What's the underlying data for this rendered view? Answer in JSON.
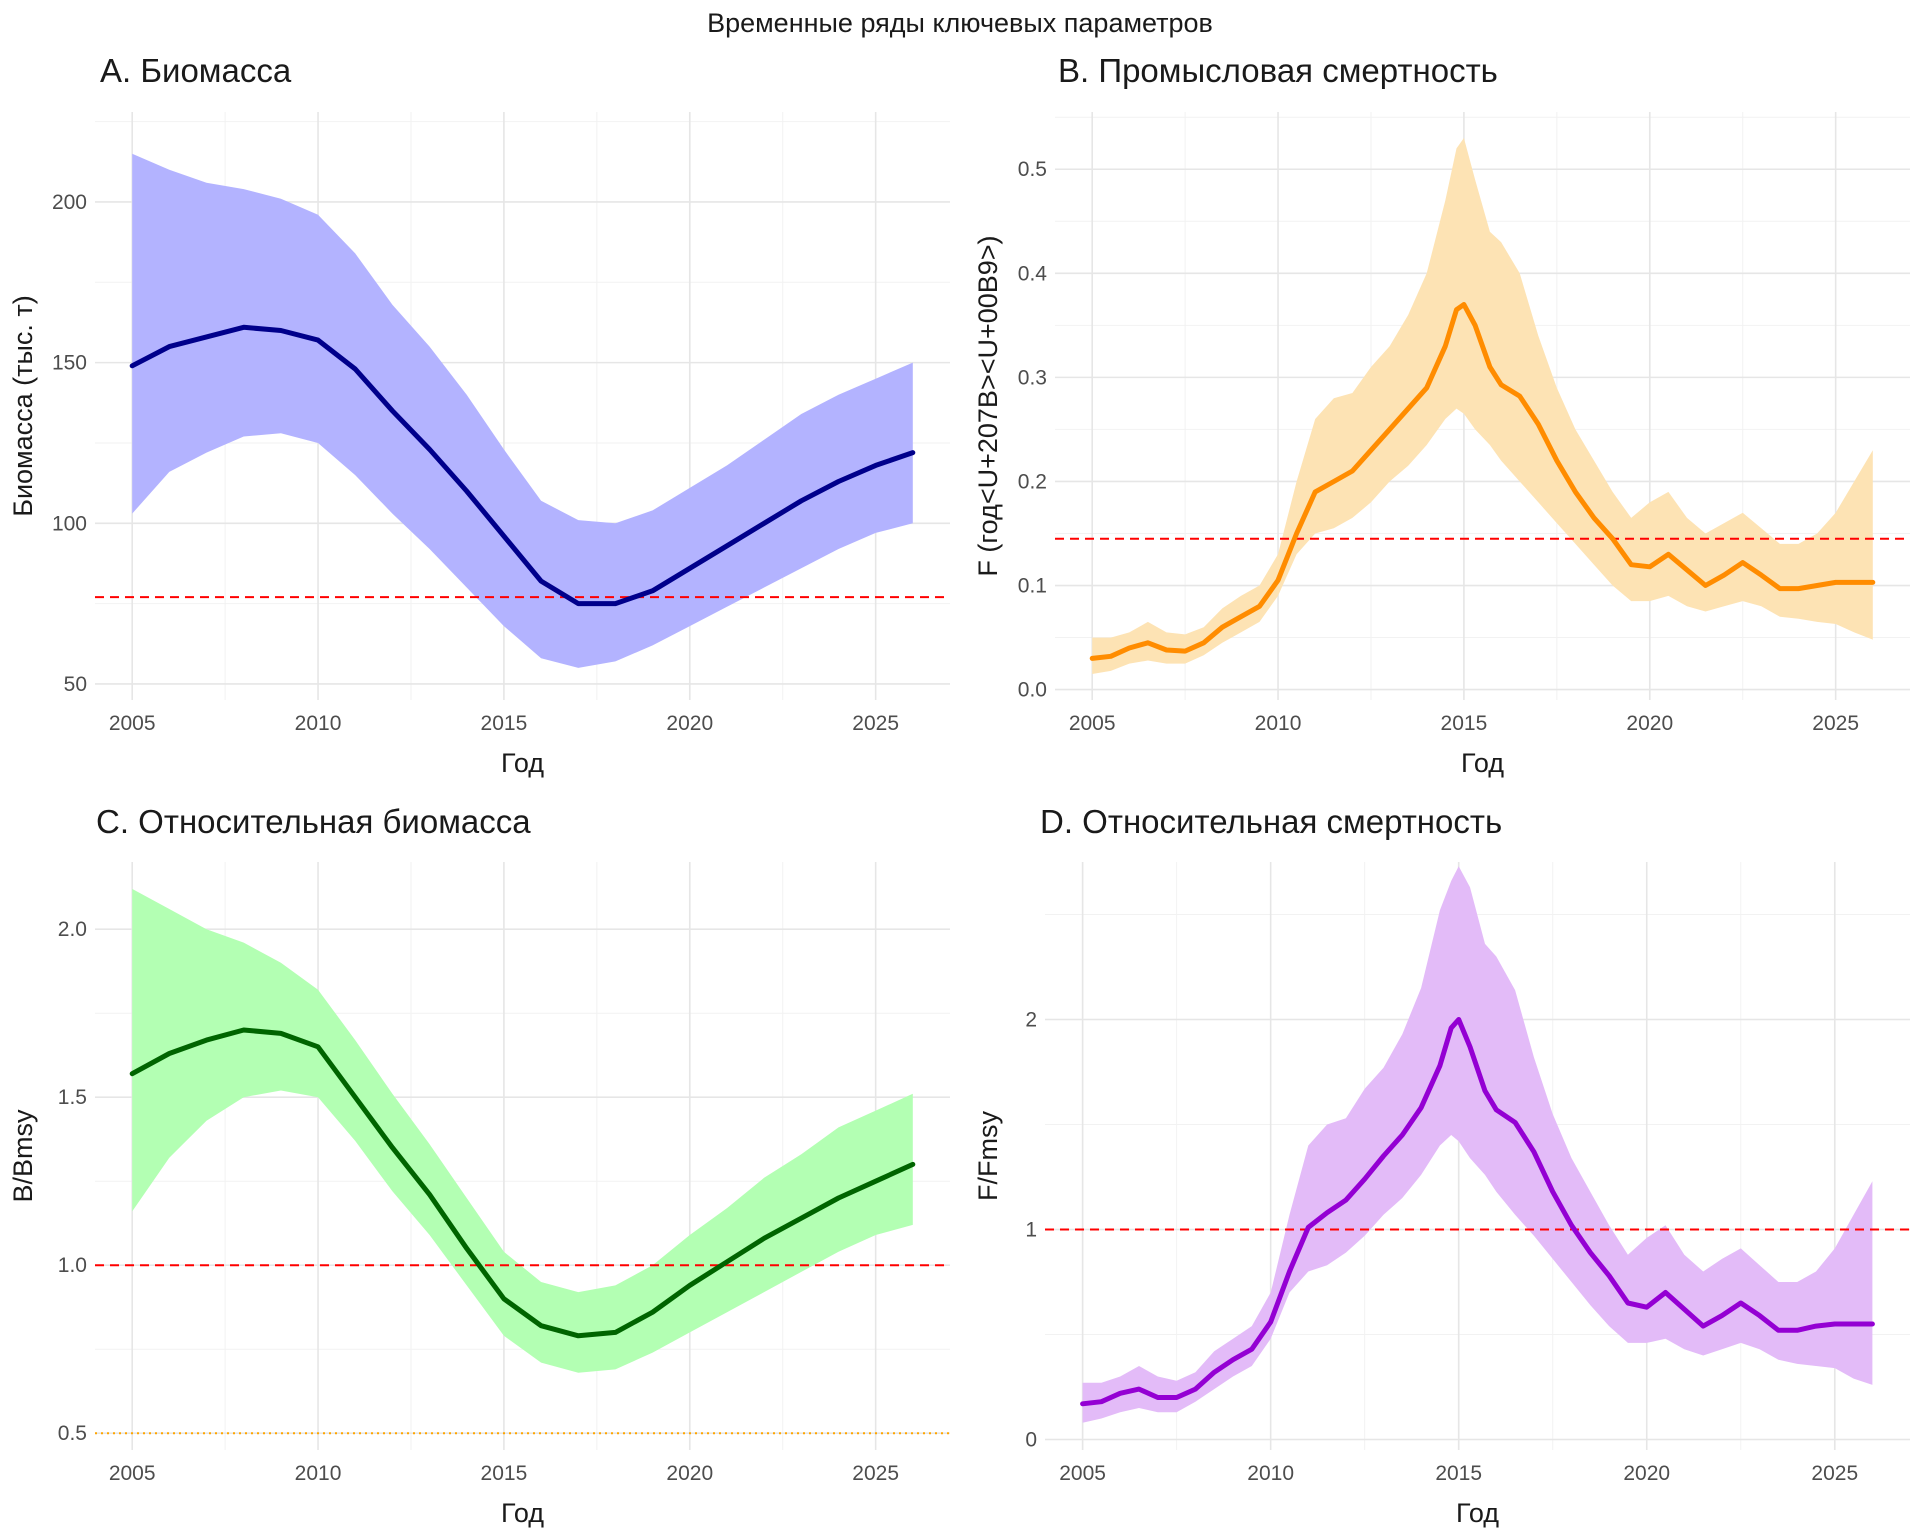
{
  "figure": {
    "title": "Временные ряды ключевых параметров"
  },
  "colors": {
    "ref_line": "#ff0000",
    "ref_line_low": "#ffa500"
  },
  "chart_data": [
    {
      "id": "A",
      "type": "line",
      "title": "A. Биомасса",
      "xlabel": "Год",
      "ylabel": "Биомасса (тыс. т)",
      "xlim": [
        2004,
        2027
      ],
      "ylim": [
        45,
        228
      ],
      "xticks": [
        2005,
        2010,
        2015,
        2020,
        2025
      ],
      "xtick_labels": [
        "2005",
        "2010",
        "2015",
        "2020",
        "2025"
      ],
      "yticks": [
        50,
        100,
        150,
        200
      ],
      "ytick_labels": [
        "50",
        "100",
        "150",
        "200"
      ],
      "line_color": "#00008b",
      "band_color": "#b3b3ff",
      "x": [
        2005,
        2006,
        2007,
        2008,
        2009,
        2010,
        2011,
        2012,
        2013,
        2014,
        2015,
        2016,
        2017,
        2018,
        2019,
        2020,
        2021,
        2022,
        2023,
        2024,
        2025,
        2026
      ],
      "y": [
        149,
        155,
        158,
        161,
        160,
        157,
        148,
        135,
        123,
        110,
        96,
        82,
        75,
        75,
        79,
        86,
        93,
        100,
        107,
        113,
        118,
        122
      ],
      "lower": [
        103,
        116,
        122,
        127,
        128,
        125,
        115,
        103,
        92,
        80,
        68,
        58,
        55,
        57,
        62,
        68,
        74,
        80,
        86,
        92,
        97,
        100
      ],
      "upper": [
        215,
        210,
        206,
        204,
        201,
        196,
        184,
        168,
        155,
        140,
        123,
        107,
        101,
        100,
        104,
        111,
        118,
        126,
        134,
        140,
        145,
        150
      ],
      "hlines": [
        {
          "y": 77,
          "style": "dashed",
          "color": "#ff0000"
        }
      ]
    },
    {
      "id": "B",
      "type": "line",
      "title": "B. Промысловая смертность",
      "xlabel": "Год",
      "ylabel": "F (год<U+207B><U+00B9>)",
      "xlim": [
        2004,
        2027
      ],
      "ylim": [
        -0.01,
        0.555
      ],
      "xticks": [
        2005,
        2010,
        2015,
        2020,
        2025
      ],
      "xtick_labels": [
        "2005",
        "2010",
        "2015",
        "2020",
        "2025"
      ],
      "yticks": [
        0.0,
        0.1,
        0.2,
        0.3,
        0.4,
        0.5
      ],
      "ytick_labels": [
        "0.0",
        "0.1",
        "0.2",
        "0.3",
        "0.4",
        "0.5"
      ],
      "line_color": "#ff8c00",
      "band_color": "#fde3b4",
      "x": [
        2005,
        2005.5,
        2006,
        2006.5,
        2007,
        2007.5,
        2008,
        2008.5,
        2009,
        2009.5,
        2010,
        2010.5,
        2011,
        2011.5,
        2012,
        2012.5,
        2013,
        2013.5,
        2014,
        2014.5,
        2014.8,
        2015,
        2015.3,
        2015.7,
        2016,
        2016.5,
        2017,
        2017.5,
        2018,
        2018.5,
        2019,
        2019.5,
        2020,
        2020.5,
        2021,
        2021.5,
        2022,
        2022.5,
        2023,
        2023.5,
        2024,
        2024.5,
        2025,
        2025.5,
        2026
      ],
      "y": [
        0.03,
        0.032,
        0.04,
        0.045,
        0.038,
        0.037,
        0.045,
        0.06,
        0.07,
        0.08,
        0.105,
        0.15,
        0.19,
        0.2,
        0.21,
        0.23,
        0.25,
        0.27,
        0.29,
        0.33,
        0.365,
        0.37,
        0.35,
        0.31,
        0.293,
        0.282,
        0.255,
        0.22,
        0.19,
        0.165,
        0.145,
        0.12,
        0.118,
        0.13,
        0.115,
        0.1,
        0.11,
        0.122,
        0.11,
        0.097,
        0.097,
        0.1,
        0.103,
        0.103,
        0.103
      ],
      "lower": [
        0.015,
        0.018,
        0.025,
        0.028,
        0.025,
        0.025,
        0.033,
        0.045,
        0.055,
        0.065,
        0.09,
        0.13,
        0.15,
        0.155,
        0.165,
        0.18,
        0.2,
        0.215,
        0.235,
        0.26,
        0.27,
        0.265,
        0.25,
        0.235,
        0.22,
        0.2,
        0.18,
        0.16,
        0.14,
        0.12,
        0.1,
        0.085,
        0.085,
        0.09,
        0.08,
        0.075,
        0.08,
        0.085,
        0.08,
        0.07,
        0.068,
        0.065,
        0.063,
        0.055,
        0.048
      ],
      "upper": [
        0.05,
        0.05,
        0.055,
        0.065,
        0.055,
        0.053,
        0.06,
        0.078,
        0.09,
        0.1,
        0.13,
        0.2,
        0.26,
        0.28,
        0.285,
        0.31,
        0.33,
        0.36,
        0.4,
        0.47,
        0.52,
        0.53,
        0.49,
        0.44,
        0.43,
        0.4,
        0.34,
        0.29,
        0.25,
        0.22,
        0.19,
        0.165,
        0.18,
        0.19,
        0.165,
        0.15,
        0.16,
        0.17,
        0.155,
        0.14,
        0.14,
        0.15,
        0.17,
        0.2,
        0.23
      ],
      "hlines": [
        {
          "y": 0.145,
          "style": "dashed",
          "color": "#ff0000"
        }
      ]
    },
    {
      "id": "C",
      "type": "line",
      "title": "C. Относительная биомасса",
      "xlabel": "Год",
      "ylabel": "B/Bmsy",
      "xlim": [
        2004,
        2027
      ],
      "ylim": [
        0.45,
        2.2
      ],
      "xticks": [
        2005,
        2010,
        2015,
        2020,
        2025
      ],
      "xtick_labels": [
        "2005",
        "2010",
        "2015",
        "2020",
        "2025"
      ],
      "yticks": [
        0.5,
        1.0,
        1.5,
        2.0
      ],
      "ytick_labels": [
        "0.5",
        "1.0",
        "1.5",
        "2.0"
      ],
      "line_color": "#006400",
      "band_color": "#b3ffb3",
      "x": [
        2005,
        2006,
        2007,
        2008,
        2009,
        2010,
        2011,
        2012,
        2013,
        2014,
        2015,
        2016,
        2017,
        2018,
        2019,
        2020,
        2021,
        2022,
        2023,
        2024,
        2025,
        2026
      ],
      "y": [
        1.57,
        1.63,
        1.67,
        1.7,
        1.69,
        1.65,
        1.5,
        1.35,
        1.21,
        1.05,
        0.9,
        0.82,
        0.79,
        0.8,
        0.86,
        0.94,
        1.01,
        1.08,
        1.14,
        1.2,
        1.25,
        1.3
      ],
      "lower": [
        1.16,
        1.32,
        1.43,
        1.5,
        1.52,
        1.5,
        1.37,
        1.22,
        1.09,
        0.94,
        0.79,
        0.71,
        0.68,
        0.69,
        0.74,
        0.8,
        0.86,
        0.92,
        0.98,
        1.04,
        1.09,
        1.12
      ],
      "upper": [
        2.12,
        2.06,
        2.0,
        1.96,
        1.9,
        1.82,
        1.67,
        1.51,
        1.36,
        1.2,
        1.04,
        0.95,
        0.92,
        0.94,
        1.0,
        1.09,
        1.17,
        1.26,
        1.33,
        1.41,
        1.46,
        1.51
      ],
      "hlines": [
        {
          "y": 1.0,
          "style": "dashed",
          "color": "#ff0000"
        },
        {
          "y": 0.5,
          "style": "dotted",
          "color": "#ffa500"
        }
      ]
    },
    {
      "id": "D",
      "type": "line",
      "title": "D. Относительная смертность",
      "xlabel": "Год",
      "ylabel": "F/Fmsy",
      "xlim": [
        2004,
        2027
      ],
      "ylim": [
        -0.05,
        2.75
      ],
      "xticks": [
        2005,
        2010,
        2015,
        2020,
        2025
      ],
      "xtick_labels": [
        "2005",
        "2010",
        "2015",
        "2020",
        "2025"
      ],
      "yticks": [
        0,
        1,
        2
      ],
      "ytick_labels": [
        "0",
        "1",
        "2"
      ],
      "line_color": "#9400d3",
      "band_color": "#e3bbf8",
      "x": [
        2005,
        2005.5,
        2006,
        2006.5,
        2007,
        2007.5,
        2008,
        2008.5,
        2009,
        2009.5,
        2010,
        2010.5,
        2011,
        2011.5,
        2012,
        2012.5,
        2013,
        2013.5,
        2014,
        2014.5,
        2014.8,
        2015,
        2015.3,
        2015.7,
        2016,
        2016.5,
        2017,
        2017.5,
        2018,
        2018.5,
        2019,
        2019.5,
        2020,
        2020.5,
        2021,
        2021.5,
        2022,
        2022.5,
        2023,
        2023.5,
        2024,
        2024.5,
        2025,
        2025.5,
        2026
      ],
      "y": [
        0.17,
        0.18,
        0.22,
        0.24,
        0.2,
        0.2,
        0.24,
        0.32,
        0.38,
        0.43,
        0.56,
        0.8,
        1.01,
        1.08,
        1.14,
        1.24,
        1.35,
        1.45,
        1.58,
        1.78,
        1.96,
        2.0,
        1.87,
        1.66,
        1.57,
        1.51,
        1.37,
        1.18,
        1.02,
        0.89,
        0.78,
        0.65,
        0.63,
        0.7,
        0.62,
        0.54,
        0.59,
        0.65,
        0.59,
        0.52,
        0.52,
        0.54,
        0.55,
        0.55,
        0.55
      ],
      "lower": [
        0.08,
        0.1,
        0.13,
        0.15,
        0.13,
        0.13,
        0.18,
        0.24,
        0.3,
        0.35,
        0.48,
        0.7,
        0.8,
        0.83,
        0.89,
        0.97,
        1.07,
        1.15,
        1.26,
        1.4,
        1.45,
        1.42,
        1.34,
        1.26,
        1.18,
        1.07,
        0.97,
        0.86,
        0.75,
        0.64,
        0.54,
        0.46,
        0.46,
        0.48,
        0.43,
        0.4,
        0.43,
        0.46,
        0.43,
        0.38,
        0.36,
        0.35,
        0.34,
        0.29,
        0.26
      ],
      "upper": [
        0.27,
        0.27,
        0.3,
        0.35,
        0.3,
        0.28,
        0.32,
        0.42,
        0.48,
        0.54,
        0.7,
        1.07,
        1.4,
        1.5,
        1.53,
        1.67,
        1.77,
        1.93,
        2.15,
        2.52,
        2.66,
        2.73,
        2.63,
        2.36,
        2.3,
        2.14,
        1.82,
        1.55,
        1.34,
        1.18,
        1.02,
        0.88,
        0.96,
        1.02,
        0.88,
        0.8,
        0.86,
        0.91,
        0.83,
        0.75,
        0.75,
        0.8,
        0.91,
        1.07,
        1.23
      ],
      "hlines": [
        {
          "y": 1.0,
          "style": "dashed",
          "color": "#ff0000"
        }
      ]
    }
  ]
}
